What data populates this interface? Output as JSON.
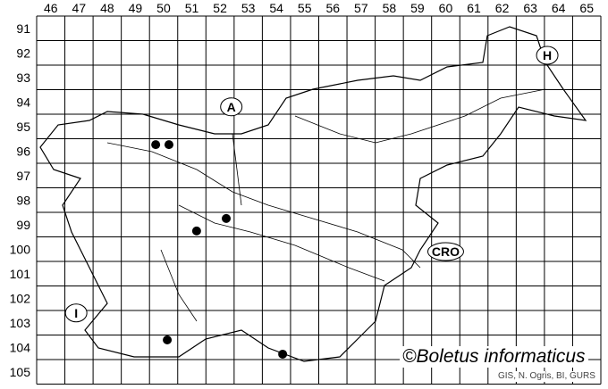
{
  "map": {
    "columns": [
      "46",
      "47",
      "48",
      "49",
      "50",
      "51",
      "52",
      "53",
      "54",
      "55",
      "56",
      "57",
      "58",
      "59",
      "60",
      "61",
      "62",
      "63",
      "64",
      "65"
    ],
    "rows": [
      "91",
      "92",
      "93",
      "94",
      "95",
      "96",
      "97",
      "98",
      "99",
      "100",
      "101",
      "102",
      "103",
      "104",
      "105"
    ],
    "country_labels": [
      {
        "text": "A",
        "col": 52.9,
        "row": 94.7
      },
      {
        "text": "H",
        "col": 64.1,
        "row": 92.6
      },
      {
        "text": "CRO",
        "col": 60.5,
        "row": 100.6
      },
      {
        "text": "I",
        "col": 47.4,
        "row": 103.1
      }
    ],
    "records": [
      {
        "col": 50.22,
        "row": 96.24
      },
      {
        "col": 50.69,
        "row": 96.24
      },
      {
        "col": 51.67,
        "row": 99.76
      },
      {
        "col": 52.72,
        "row": 99.25
      },
      {
        "col": 50.63,
        "row": 104.2
      },
      {
        "col": 54.72,
        "row": 104.78
      }
    ],
    "dot_color": "#000000",
    "line_color": "#000000"
  },
  "credit": {
    "main": "©Boletus informaticus",
    "source": "GIS, N. Ogris, BI, GURS"
  }
}
